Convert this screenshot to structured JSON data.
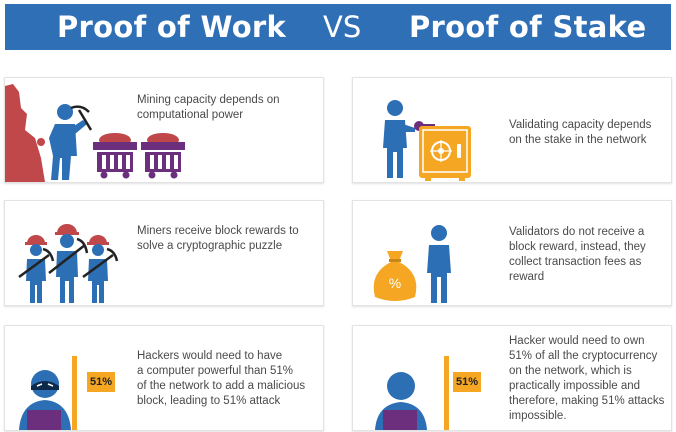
{
  "header": {
    "left_title": "Proof of Work",
    "vs": "VS",
    "right_title": "Proof of  Stake"
  },
  "colors": {
    "header_blue": "#2f6fb6",
    "figure_blue": "#2d6fb5",
    "red": "#c0474a",
    "purple": "#6b2f7e",
    "gold": "#f5a623"
  },
  "proof_of_work": [
    {
      "text": "Mining capacity depends on\ncomputational power",
      "icon": "miner-with-carts-icon"
    },
    {
      "text": "Miners receive block rewards to\nsolve a cryptographic puzzle",
      "icon": "three-miners-icon"
    },
    {
      "text": "Hackers would need to have\na computer powerful than 51%\nof the network to add a malicious\nblock, leading to 51% attack",
      "icon": "hacker-computer-icon",
      "badge": "51%"
    }
  ],
  "proof_of_stake": [
    {
      "text": "Validating capacity depends\non the stake in the network",
      "icon": "validator-safe-icon"
    },
    {
      "text": "Validators do not receive a\nblock reward, instead, they\ncollect transaction fees as\nreward",
      "icon": "validator-money-bag-icon",
      "bag_label": "%"
    },
    {
      "text": "Hacker would need to own\n51% of all the cryptocurrency\non the network, which is\npractically impossible and\ntherefore, making 51% attacks\nimpossible.",
      "icon": "hacker-computer-icon",
      "badge": "51%"
    }
  ]
}
